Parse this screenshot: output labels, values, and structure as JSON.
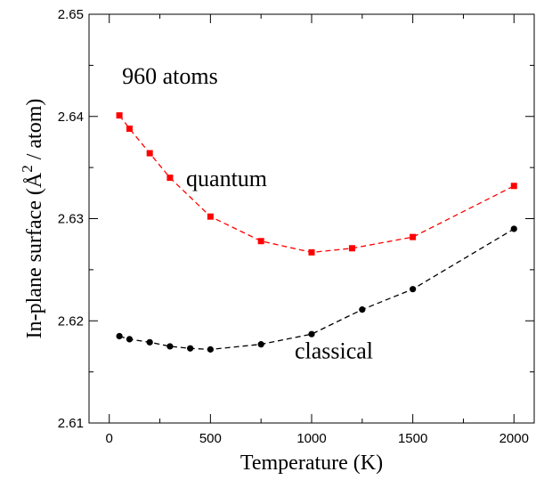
{
  "chart_data": {
    "type": "line",
    "xlabel": "Temperature  (K)",
    "ylabel": "In-plane surface  (Å² / atom)",
    "ylabel_parts": {
      "prefix": "In-plane surface  (",
      "symbol": "Å",
      "superscript": "2",
      "suffix": " / atom)"
    },
    "xlim": [
      -100,
      2100
    ],
    "ylim": [
      2.61,
      2.65
    ],
    "xticks": [
      0,
      500,
      1000,
      1500,
      2000
    ],
    "xtick_labels": [
      "0",
      "500",
      "1000",
      "1500",
      "2000"
    ],
    "yticks": [
      2.61,
      2.62,
      2.63,
      2.64,
      2.65
    ],
    "ytick_labels": [
      "2.61",
      "2.62",
      "2.63",
      "2.64",
      "2.65"
    ],
    "grid": false,
    "annotations": [
      {
        "text": "960 atoms",
        "x": 300,
        "y": 2.6432
      },
      {
        "text": "quantum",
        "x": 580,
        "y": 2.6332
      },
      {
        "text": "classical",
        "x": 1110,
        "y": 2.6163
      }
    ],
    "series": [
      {
        "marker": "square",
        "color": "#ff0000",
        "x": [
          50,
          100,
          200,
          300,
          500,
          750,
          1000,
          1200,
          1500,
          2000
        ],
        "y": [
          2.6401,
          2.6388,
          2.6364,
          2.634,
          2.6302,
          2.6278,
          2.6267,
          2.6271,
          2.6282,
          2.6332
        ]
      },
      {
        "marker": "circle",
        "color": "#000000",
        "x": [
          50,
          100,
          200,
          300,
          400,
          500,
          750,
          1000,
          1250,
          1500,
          2000
        ],
        "y": [
          2.6185,
          2.6182,
          2.6179,
          2.6175,
          2.6173,
          2.6172,
          2.6177,
          2.6187,
          2.6211,
          2.6231,
          2.629
        ]
      }
    ]
  }
}
